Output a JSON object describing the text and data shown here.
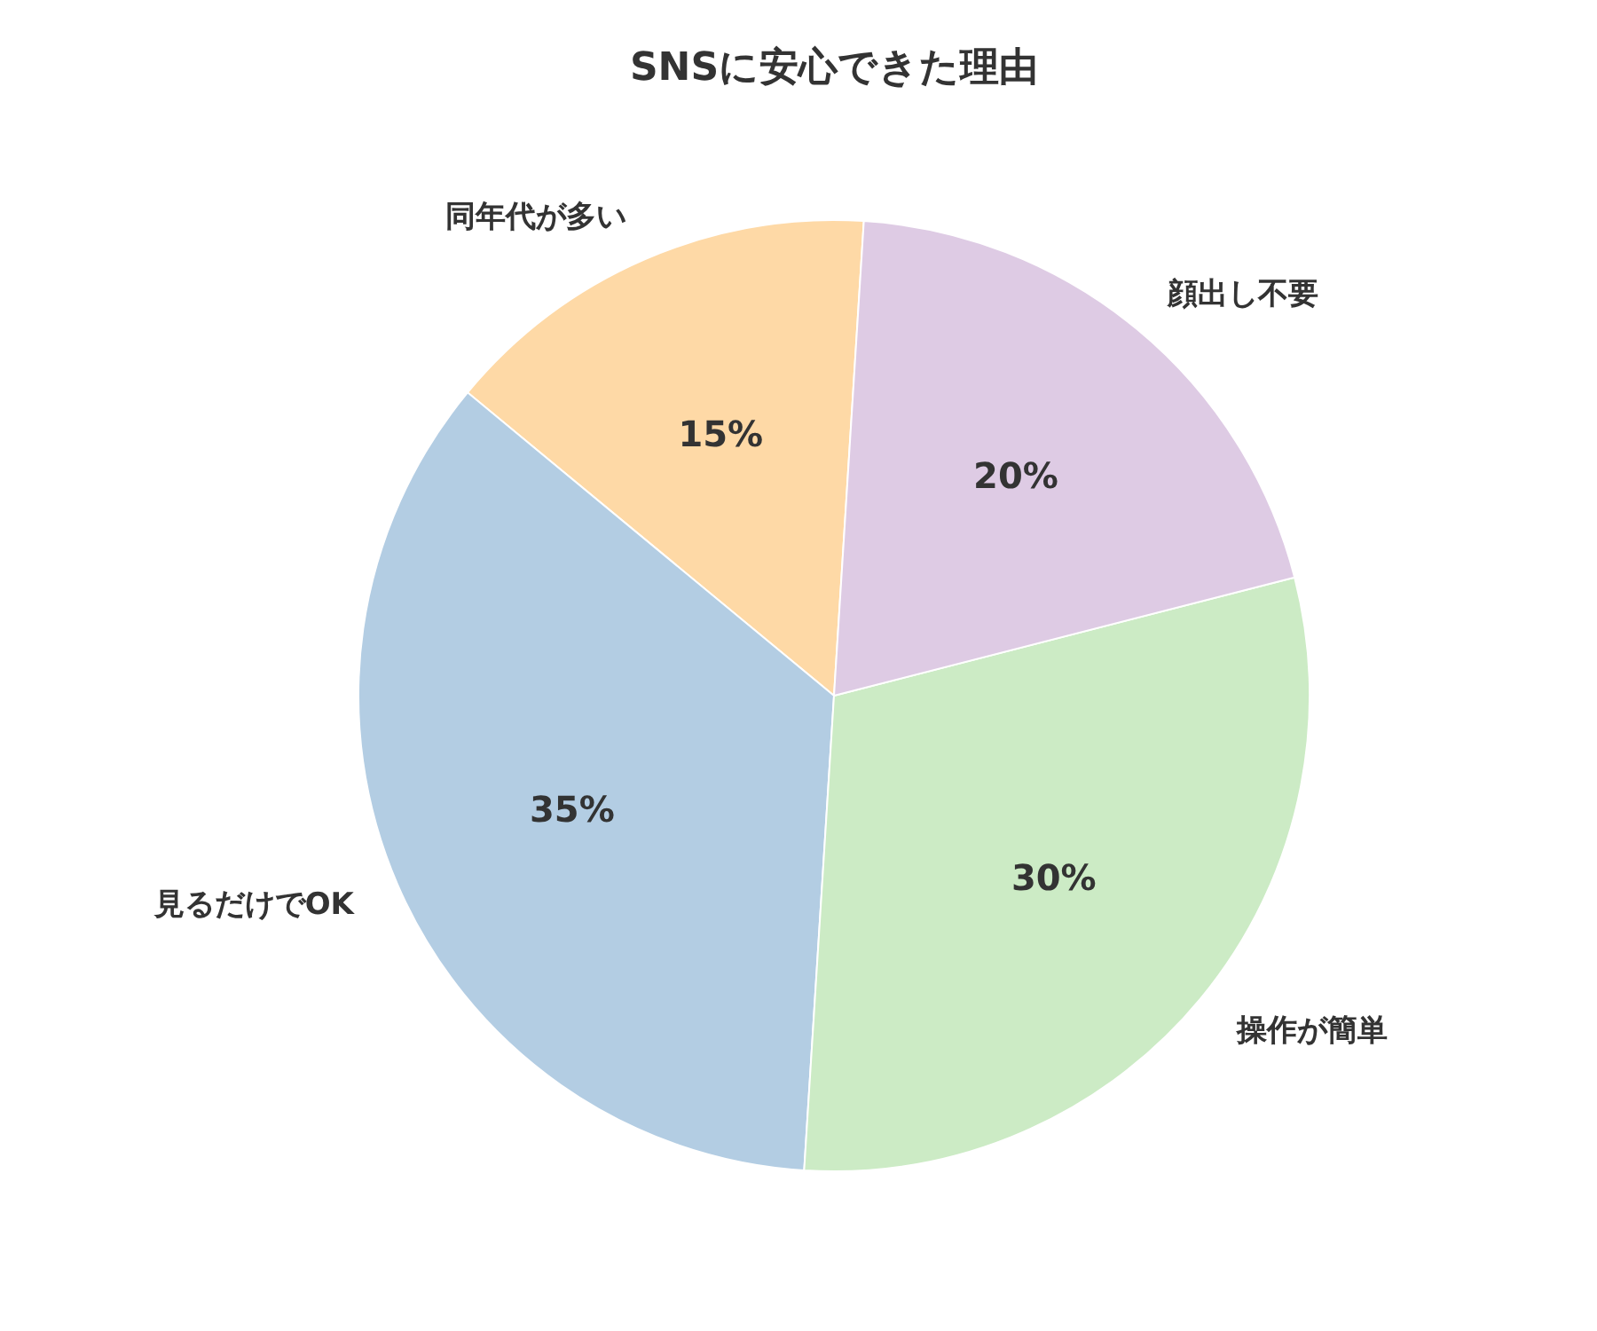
{
  "chart_data": {
    "type": "pie",
    "title": "SNSに安心できた理由",
    "categories": [
      "同年代が多い",
      "見るだけでOK",
      "操作が簡単",
      "顔出し不要"
    ],
    "values": [
      15,
      35,
      30,
      20
    ],
    "colors": [
      "#fed9a6",
      "#b3cde3",
      "#ccebc5",
      "#decbe4"
    ],
    "value_labels": [
      "15%",
      "35%",
      "30%",
      "20%"
    ]
  }
}
